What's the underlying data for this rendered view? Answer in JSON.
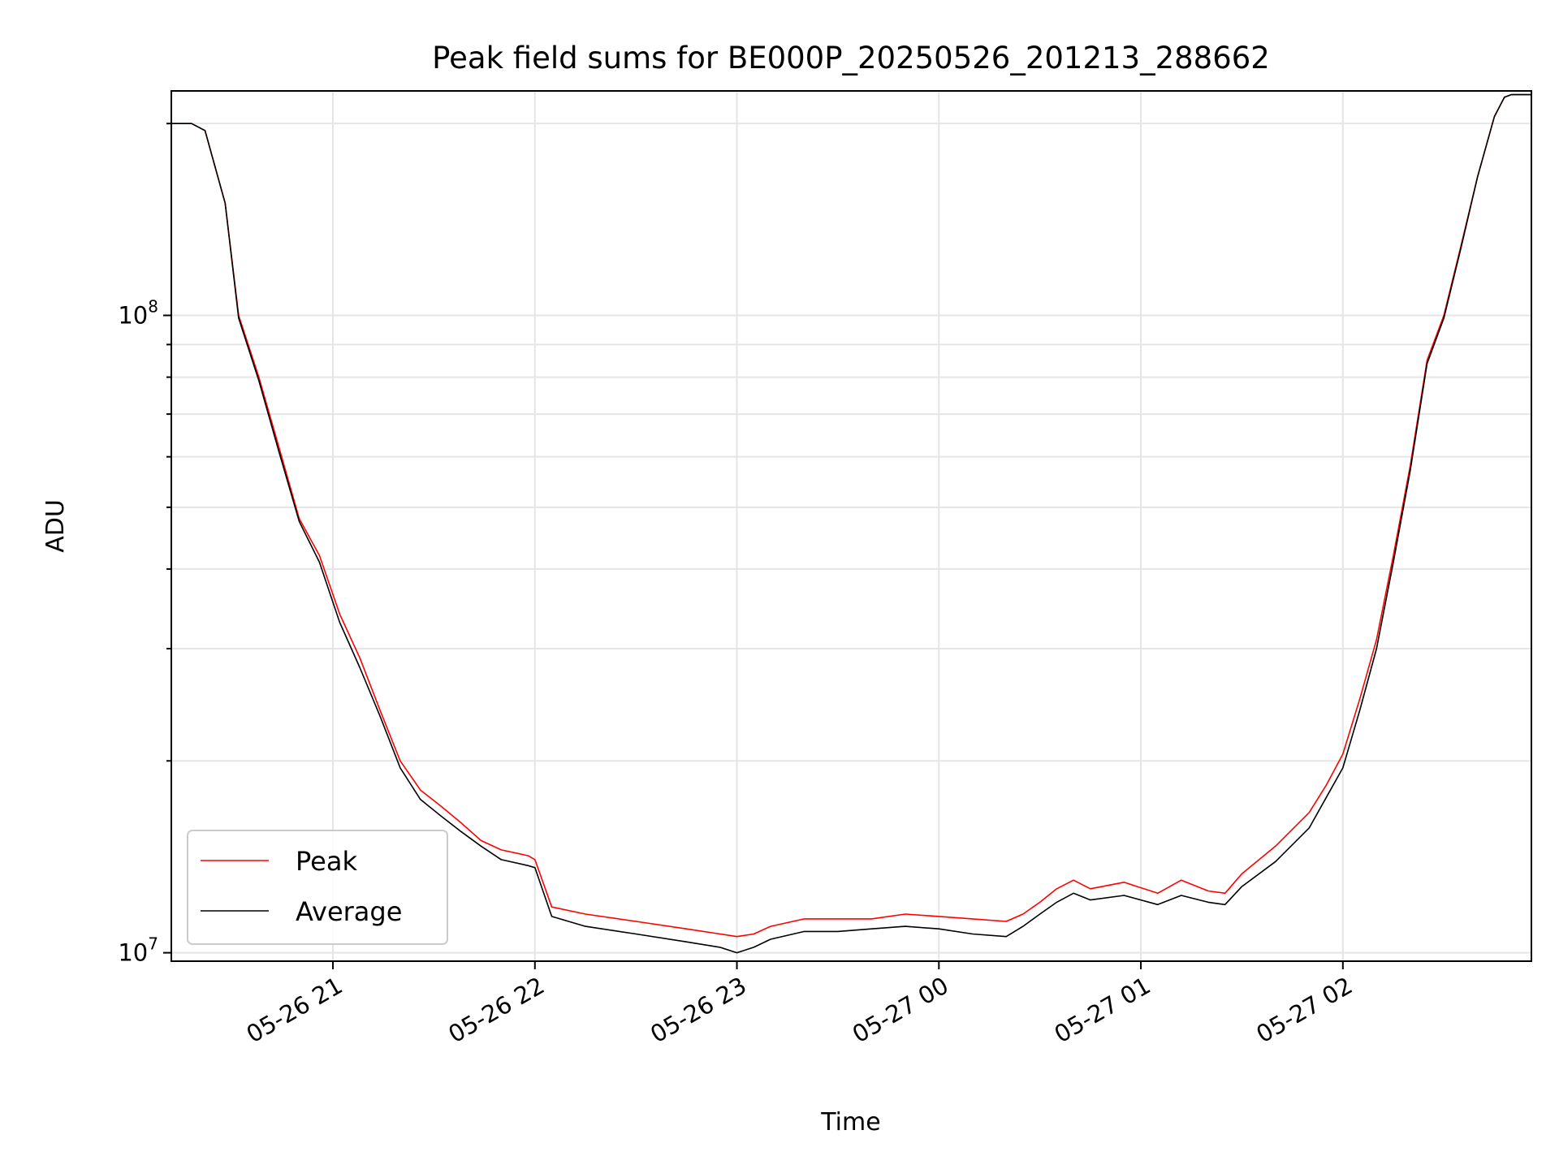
{
  "chart_data": {
    "type": "line",
    "title": "Peak field sums for BE000P_20250526_201213_288662",
    "xlabel": "Time",
    "ylabel": "ADU",
    "yscale": "log",
    "ylim": [
      9700000,
      225000000
    ],
    "xlim": [
      "2025-05-26 20:12",
      "2025-05-27 02:56"
    ],
    "grid": true,
    "legend_position": "lower-left",
    "x_ticks": [
      {
        "label": "05-26 21",
        "t": "2025-05-26 21:00"
      },
      {
        "label": "05-26 22",
        "t": "2025-05-26 22:00"
      },
      {
        "label": "05-26 23",
        "t": "2025-05-26 23:00"
      },
      {
        "label": "05-27 00",
        "t": "2025-05-27 00:00"
      },
      {
        "label": "05-27 01",
        "t": "2025-05-27 01:00"
      },
      {
        "label": "05-27 02",
        "t": "2025-05-27 02:00"
      }
    ],
    "y_ticks": [
      {
        "base": "10",
        "exp": "7",
        "value": 10000000
      },
      {
        "base": "10",
        "exp": "8",
        "value": 100000000
      }
    ],
    "series": [
      {
        "name": "Peak",
        "color": "#ff0000",
        "x": [
          "2025-05-26 20:12",
          "2025-05-26 20:18",
          "2025-05-26 20:22",
          "2025-05-26 20:28",
          "2025-05-26 20:32",
          "2025-05-26 20:38",
          "2025-05-26 20:44",
          "2025-05-26 20:50",
          "2025-05-26 20:56",
          "2025-05-26 21:02",
          "2025-05-26 21:08",
          "2025-05-26 21:14",
          "2025-05-26 21:20",
          "2025-05-26 21:26",
          "2025-05-26 21:32",
          "2025-05-26 21:38",
          "2025-05-26 21:44",
          "2025-05-26 21:50",
          "2025-05-26 21:58",
          "2025-05-26 22:00",
          "2025-05-26 22:05",
          "2025-05-26 22:15",
          "2025-05-26 22:30",
          "2025-05-26 22:45",
          "2025-05-26 22:55",
          "2025-05-26 23:00",
          "2025-05-26 23:05",
          "2025-05-26 23:10",
          "2025-05-26 23:20",
          "2025-05-26 23:30",
          "2025-05-26 23:40",
          "2025-05-26 23:50",
          "2025-05-27 00:00",
          "2025-05-27 00:10",
          "2025-05-27 00:20",
          "2025-05-27 00:25",
          "2025-05-27 00:30",
          "2025-05-27 00:35",
          "2025-05-27 00:40",
          "2025-05-27 00:45",
          "2025-05-27 00:55",
          "2025-05-27 01:05",
          "2025-05-27 01:12",
          "2025-05-27 01:20",
          "2025-05-27 01:25",
          "2025-05-27 01:30",
          "2025-05-27 01:40",
          "2025-05-27 01:50",
          "2025-05-27 01:55",
          "2025-05-27 02:00",
          "2025-05-27 02:05",
          "2025-05-27 02:10",
          "2025-05-27 02:15",
          "2025-05-27 02:20",
          "2025-05-27 02:25",
          "2025-05-27 02:30",
          "2025-05-27 02:35",
          "2025-05-27 02:40",
          "2025-05-27 02:45",
          "2025-05-27 02:48",
          "2025-05-27 02:50",
          "2025-05-27 02:56"
        ],
        "values": [
          200000000,
          200000000,
          195000000,
          150000000,
          100000000,
          80000000,
          62000000,
          48000000,
          42000000,
          34000000,
          29000000,
          24000000,
          20000000,
          18000000,
          17000000,
          16000000,
          15000000,
          14500000,
          14200000,
          14000000,
          11800000,
          11500000,
          11200000,
          10900000,
          10700000,
          10600000,
          10700000,
          11000000,
          11300000,
          11300000,
          11300000,
          11500000,
          11400000,
          11300000,
          11200000,
          11500000,
          12000000,
          12600000,
          13000000,
          12600000,
          12900000,
          12400000,
          13000000,
          12500000,
          12400000,
          13300000,
          14700000,
          16600000,
          18300000,
          20500000,
          25000000,
          31000000,
          42000000,
          58000000,
          85000000,
          100000000,
          128000000,
          165000000,
          205000000,
          220000000,
          222000000,
          222000000
        ]
      },
      {
        "name": "Average",
        "color": "#000000",
        "x": [
          "2025-05-26 20:12",
          "2025-05-26 20:18",
          "2025-05-26 20:22",
          "2025-05-26 20:28",
          "2025-05-26 20:32",
          "2025-05-26 20:38",
          "2025-05-26 20:44",
          "2025-05-26 20:50",
          "2025-05-26 20:56",
          "2025-05-26 21:02",
          "2025-05-26 21:08",
          "2025-05-26 21:14",
          "2025-05-26 21:20",
          "2025-05-26 21:26",
          "2025-05-26 21:32",
          "2025-05-26 21:38",
          "2025-05-26 21:44",
          "2025-05-26 21:50",
          "2025-05-26 21:58",
          "2025-05-26 22:00",
          "2025-05-26 22:05",
          "2025-05-26 22:15",
          "2025-05-26 22:30",
          "2025-05-26 22:45",
          "2025-05-26 22:55",
          "2025-05-26 23:00",
          "2025-05-26 23:05",
          "2025-05-26 23:10",
          "2025-05-26 23:20",
          "2025-05-26 23:30",
          "2025-05-26 23:40",
          "2025-05-26 23:50",
          "2025-05-27 00:00",
          "2025-05-27 00:10",
          "2025-05-27 00:20",
          "2025-05-27 00:25",
          "2025-05-27 00:30",
          "2025-05-27 00:35",
          "2025-05-27 00:40",
          "2025-05-27 00:45",
          "2025-05-27 00:55",
          "2025-05-27 01:05",
          "2025-05-27 01:12",
          "2025-05-27 01:20",
          "2025-05-27 01:25",
          "2025-05-27 01:30",
          "2025-05-27 01:40",
          "2025-05-27 01:50",
          "2025-05-27 01:55",
          "2025-05-27 02:00",
          "2025-05-27 02:05",
          "2025-05-27 02:10",
          "2025-05-27 02:15",
          "2025-05-27 02:20",
          "2025-05-27 02:25",
          "2025-05-27 02:30",
          "2025-05-27 02:35",
          "2025-05-27 02:40",
          "2025-05-27 02:45",
          "2025-05-27 02:48",
          "2025-05-27 02:50",
          "2025-05-27 02:56"
        ],
        "values": [
          200000000,
          200000000,
          195000000,
          150000000,
          99000000,
          79000000,
          61000000,
          47500000,
          41000000,
          33000000,
          28000000,
          23500000,
          19500000,
          17400000,
          16400000,
          15500000,
          14700000,
          14000000,
          13700000,
          13600000,
          11400000,
          11000000,
          10700000,
          10400000,
          10200000,
          10000000,
          10200000,
          10500000,
          10800000,
          10800000,
          10900000,
          11000000,
          10900000,
          10700000,
          10600000,
          11000000,
          11500000,
          12000000,
          12400000,
          12100000,
          12300000,
          11900000,
          12300000,
          12000000,
          11900000,
          12700000,
          13900000,
          15700000,
          17500000,
          19500000,
          24000000,
          30000000,
          41000000,
          57000000,
          84000000,
          99000000,
          127000000,
          165000000,
          205000000,
          220000000,
          222000000,
          222000000
        ]
      }
    ]
  }
}
